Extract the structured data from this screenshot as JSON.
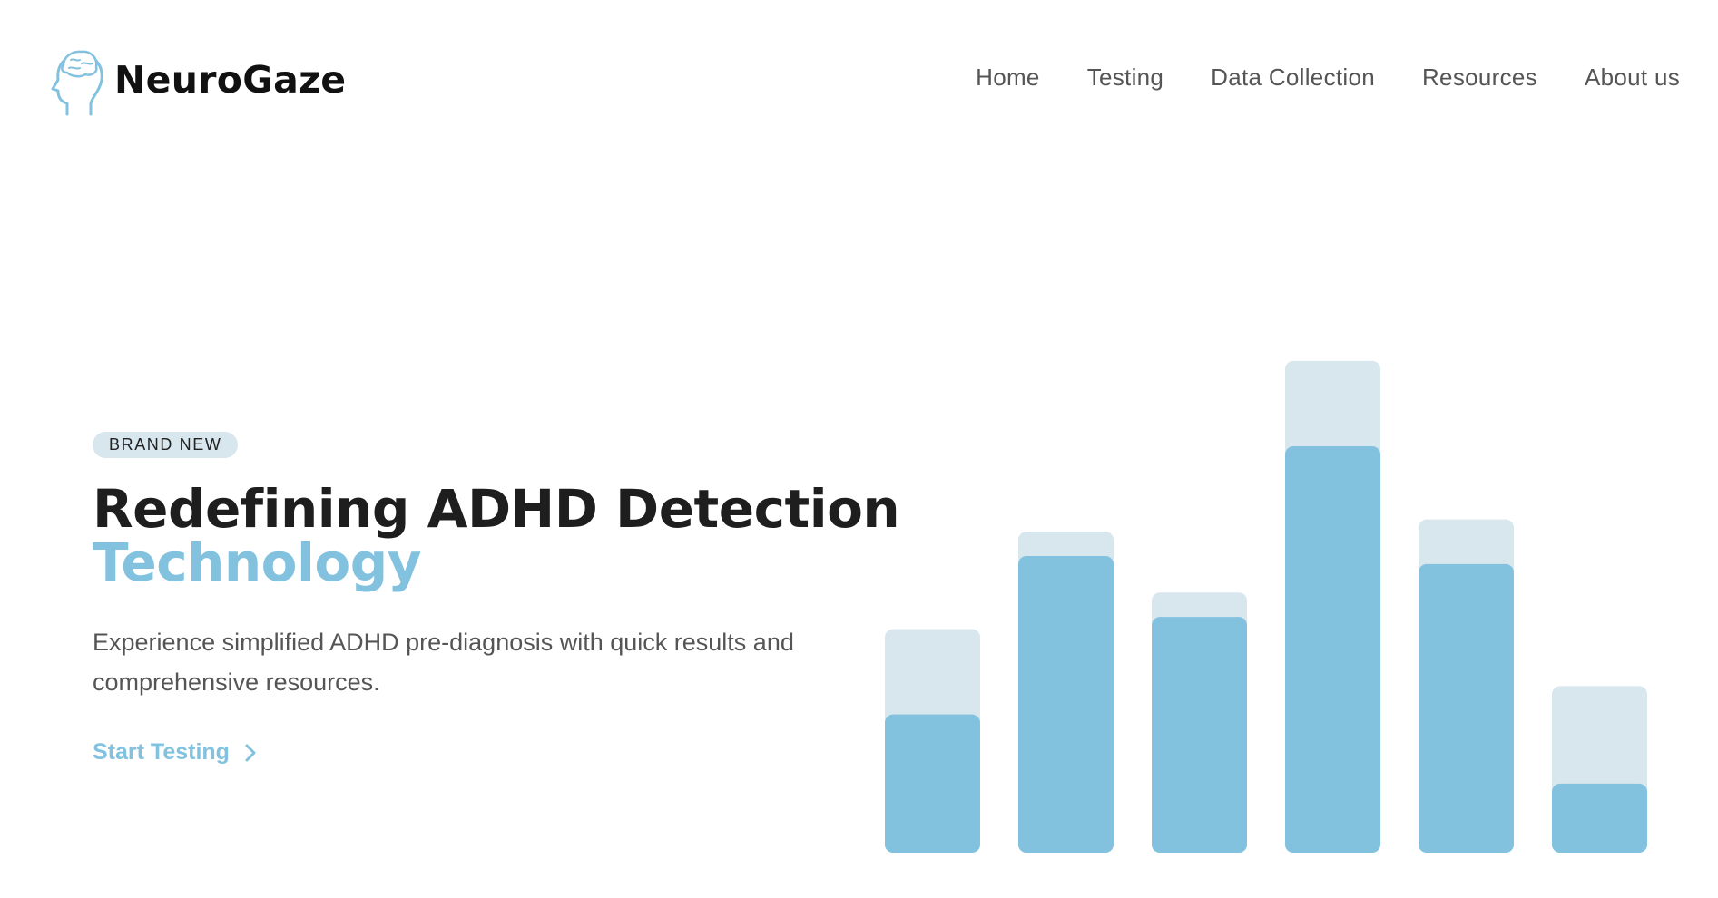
{
  "brand": {
    "name": "NeuroGaze",
    "logo_icon": "head-brain-icon",
    "accent": "#82c2df"
  },
  "nav": {
    "items": [
      {
        "label": "Home"
      },
      {
        "label": "Testing"
      },
      {
        "label": "Data Collection"
      },
      {
        "label": "Resources"
      },
      {
        "label": "About us"
      }
    ]
  },
  "hero": {
    "badge": "BRAND NEW",
    "title_line1": "Redefining ADHD Detection",
    "title_line2": "Technology",
    "subtitle": "Experience simplified ADHD pre-diagnosis with quick results and comprehensive resources.",
    "cta_label": "Start Testing",
    "cta_icon": "chevron-right-icon"
  },
  "chart_data": {
    "type": "bar",
    "categories": [
      "",
      "",
      "",
      "",
      "",
      ""
    ],
    "series": [
      {
        "values": [
          34,
          73,
          58,
          100,
          71,
          17
        ]
      },
      {
        "values": [
          55,
          79,
          64,
          121,
          82,
          41
        ]
      }
    ],
    "ylim": [
      0,
      125
    ],
    "grid": false,
    "legend": "none",
    "colors": {
      "filled": "#82c2df",
      "background": "#d8e6ee"
    }
  }
}
